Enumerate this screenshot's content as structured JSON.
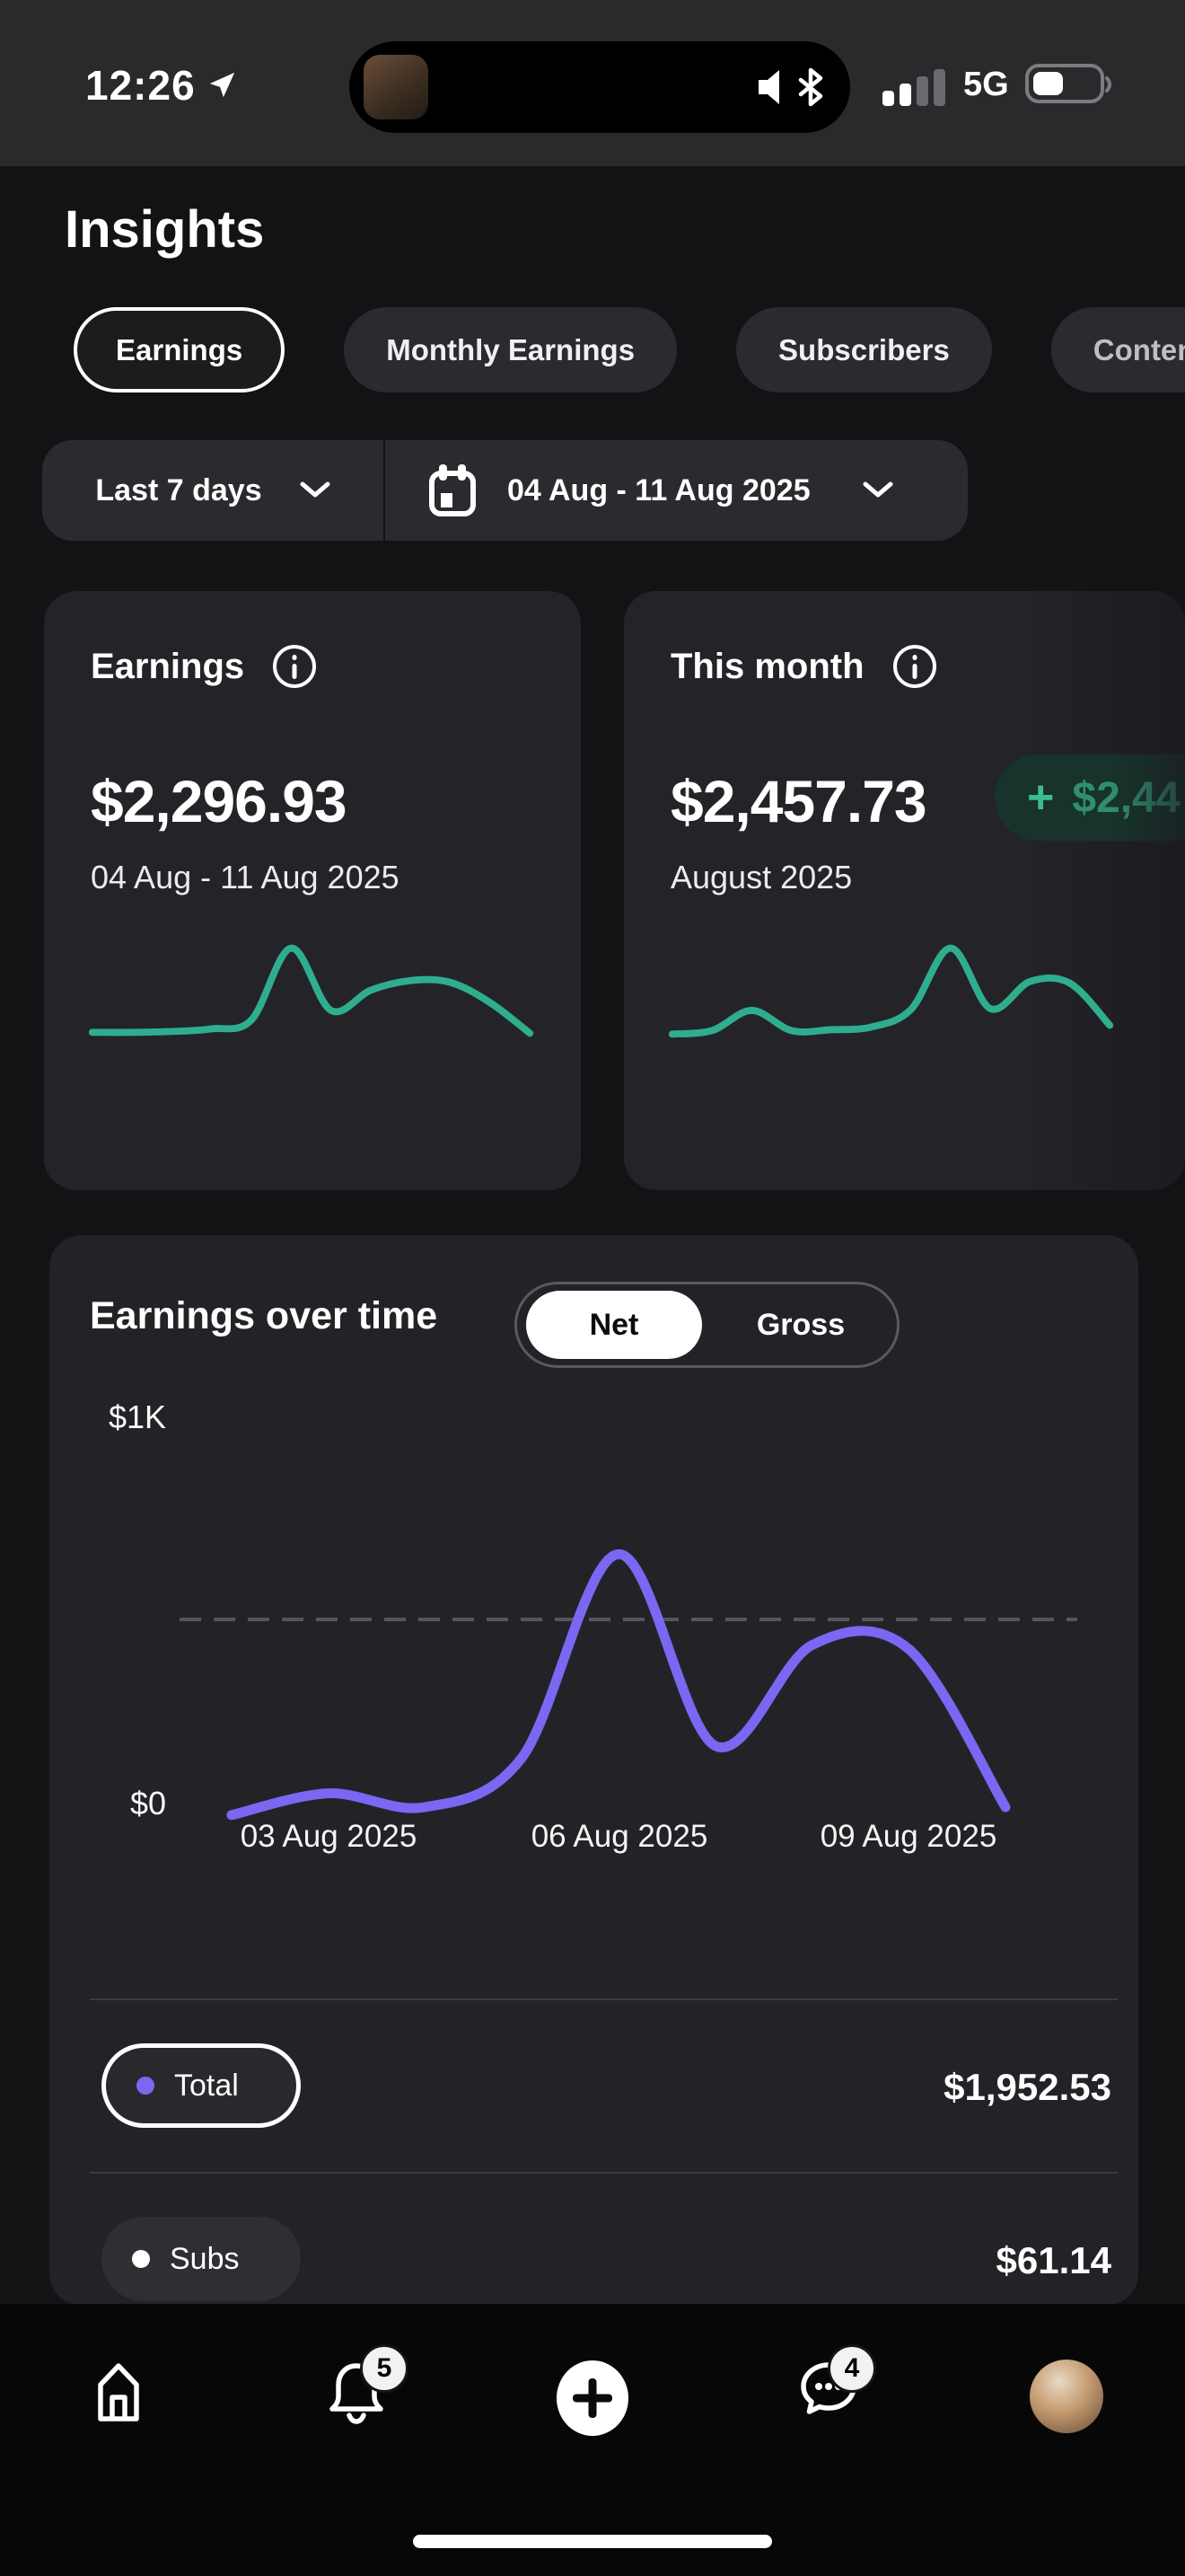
{
  "status_bar": {
    "time": "12:26",
    "network": "5G",
    "battery_fill": 0.45
  },
  "header": {
    "title": "Insights"
  },
  "tabs": [
    {
      "label": "Earnings",
      "selected": true
    },
    {
      "label": "Monthly Earnings",
      "selected": false
    },
    {
      "label": "Subscribers",
      "selected": false
    },
    {
      "label": "Content",
      "selected": false
    }
  ],
  "filter": {
    "range_label": "Last 7 days",
    "date_range": "04 Aug - 11 Aug 2025"
  },
  "summary_cards": [
    {
      "title": "Earnings",
      "value": "$2,296.93",
      "subtitle": "04 Aug - 11 Aug 2025"
    },
    {
      "title": "This month",
      "value": "$2,457.73",
      "badge_plus": "+",
      "badge_value": "$2,44",
      "subtitle": "August 2025"
    }
  ],
  "earnings_over_time": {
    "title": "Earnings over time",
    "toggle": {
      "options": [
        "Net",
        "Gross"
      ],
      "selected": "Net"
    },
    "y_axis": {
      "top": "$1K",
      "bottom": "$0"
    },
    "x_labels": [
      "03 Aug 2025",
      "06 Aug 2025",
      "09 Aug 2025"
    ],
    "rows": [
      {
        "label": "Total",
        "value": "$1,952.53",
        "color": "#7A67F2",
        "selected": true
      },
      {
        "label": "Subs",
        "value": "$61.14",
        "color": "#FFFFFF",
        "selected": false
      }
    ]
  },
  "bottom_nav": {
    "items": [
      "home",
      "notifications",
      "create",
      "messages",
      "profile"
    ],
    "notifications_badge": "5",
    "messages_badge": "4"
  },
  "colors": {
    "accent_green": "#2FAE8F",
    "accent_purple": "#7A67F2",
    "badge_bg": "#17332B",
    "badge_text": "#2F8F70",
    "card_bg": "#242428",
    "page_bg": "#131316"
  },
  "icons": {
    "status": [
      "location-arrow-icon",
      "speaker-bluetooth-icon",
      "signal-bars-icon",
      "battery-icon"
    ],
    "controls": [
      "chevron-down-icon",
      "calendar-icon",
      "info-circle-icon"
    ],
    "nav": [
      "home-icon",
      "bell-icon",
      "plus-icon",
      "chat-icon",
      "avatar"
    ]
  },
  "chart_data": [
    {
      "type": "line",
      "title": "Earnings over time (Net)",
      "x": [
        "02 Aug 2025",
        "03 Aug 2025",
        "04 Aug 2025",
        "05 Aug 2025",
        "06 Aug 2025",
        "07 Aug 2025",
        "08 Aug 2025",
        "09 Aug 2025",
        "10 Aug 2025"
      ],
      "series": [
        {
          "name": "Net earnings",
          "color": "#7A67F2",
          "values": [
            5,
            60,
            25,
            150,
            665,
            180,
            435,
            425,
            25
          ]
        }
      ],
      "ylim": [
        0,
        1000
      ],
      "ytick_labels": [
        "$0",
        "$1K"
      ],
      "x_tick_labels_shown": [
        "03 Aug 2025",
        "06 Aug 2025",
        "09 Aug 2025"
      ],
      "gridline": {
        "style": "dashed",
        "value": 500
      },
      "legend_position": "below",
      "legend": [
        {
          "label": "Total",
          "value": "$1,952.53",
          "color": "#7A67F2"
        },
        {
          "label": "Subs",
          "value": "$61.14",
          "color": "#FFFFFF"
        }
      ]
    },
    {
      "type": "line",
      "name": "earnings-card-sparkline",
      "color": "#2FAE8F",
      "unit": "normalized-0-100",
      "values": [
        4,
        4,
        5,
        8,
        18,
        100,
        29,
        52,
        63,
        61,
        38,
        3
      ]
    },
    {
      "type": "line",
      "name": "this-month-card-sparkline",
      "color": "#2FAE8F",
      "unit": "normalized-0-100",
      "values": [
        2,
        6,
        29,
        6,
        7,
        10,
        30,
        100,
        31,
        62,
        60,
        12
      ]
    }
  ]
}
